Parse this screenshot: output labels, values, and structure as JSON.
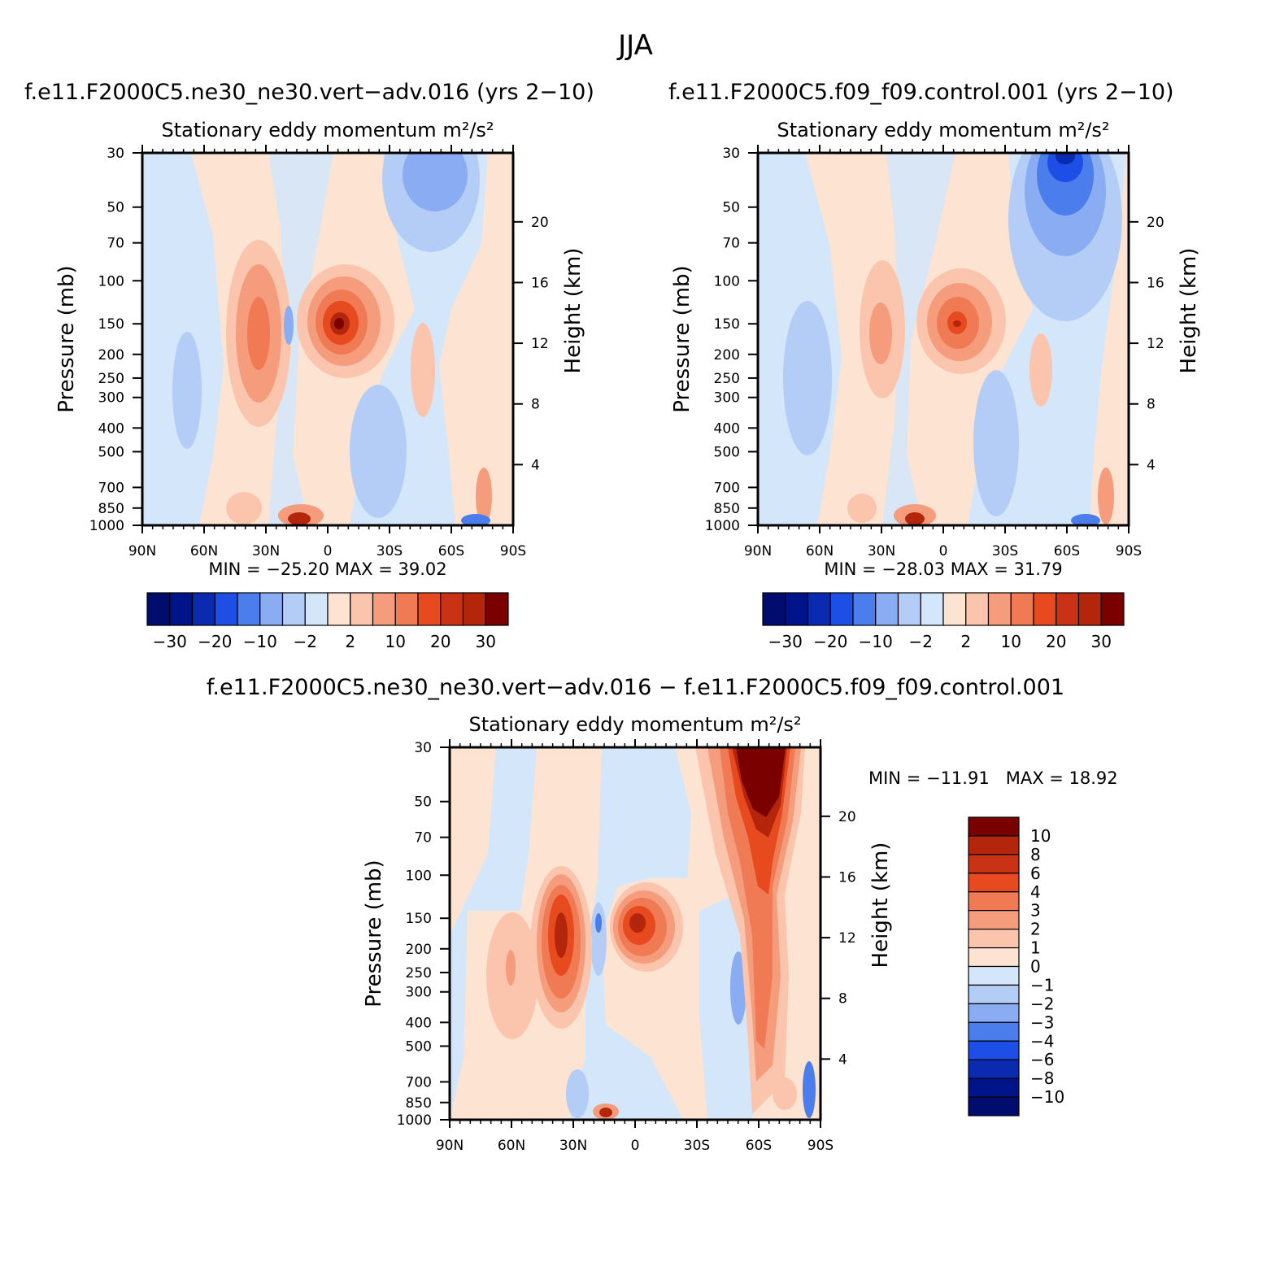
{
  "figure": {
    "title": "JJA"
  },
  "panels": [
    {
      "id": "p1",
      "case_title": "f.e11.F2000C5.ne30_ne30.vert−adv.016 (yrs 2−10)",
      "plot_title": "Stationary eddy momentum",
      "units": "m²/s²",
      "min_text": "MIN = −25.20",
      "max_text": "MAX = 39.02",
      "left_axis": "Pressure (mb)",
      "right_axis": "Height (km)"
    },
    {
      "id": "p2",
      "case_title": "f.e11.F2000C5.f09_f09.control.001 (yrs 2−10)",
      "plot_title": "Stationary eddy momentum",
      "units": "m²/s²",
      "min_text": "MIN = −28.03",
      "max_text": "MAX = 31.79",
      "left_axis": "Pressure (mb)",
      "right_axis": "Height (km)"
    },
    {
      "id": "p3",
      "case_title": "f.e11.F2000C5.ne30_ne30.vert−adv.016 − f.e11.F2000C5.f09_f09.control.001",
      "plot_title": "Stationary eddy momentum",
      "units": "m²/s²",
      "min_text": "MIN = −11.91",
      "max_text": "MAX = 18.92",
      "left_axis": "Pressure (mb)",
      "right_axis": "Height (km)"
    }
  ],
  "chart_data": [
    {
      "type": "heatmap",
      "title": "Stationary eddy momentum (vert-adv.016)",
      "x_ticks": [
        "90N",
        "60N",
        "30N",
        "0",
        "30S",
        "60S",
        "90S"
      ],
      "pressure_ticks": [
        "30",
        "50",
        "70",
        "100",
        "150",
        "200",
        "250",
        "300",
        "400",
        "500",
        "700",
        "850",
        "1000"
      ],
      "height_ticks": [
        "20",
        "16",
        "12",
        "8",
        "4"
      ],
      "min": -25.2,
      "max": 39.02,
      "colorbar_levels": [
        -30,
        -25,
        -20,
        -15,
        -10,
        -5,
        -2,
        0,
        2,
        5,
        10,
        15,
        20,
        25,
        30
      ],
      "colorbar_labels": [
        "−30",
        "−20",
        "−10",
        "−2",
        "2",
        "10",
        "20",
        "30"
      ],
      "features": [
        {
          "lat": -5,
          "p": 150,
          "value": 39.0,
          "note": "equatorial upper-level maximum"
        },
        {
          "lat": 30,
          "p": 170,
          "value": 15.0
        },
        {
          "lat": 65,
          "p": 220,
          "value": -5.0
        },
        {
          "lat": -50,
          "p": 40,
          "value": -10.0
        },
        {
          "lat": -15,
          "p": 400,
          "value": -5.0
        }
      ]
    },
    {
      "type": "heatmap",
      "title": "Stationary eddy momentum (control.001)",
      "x_ticks": [
        "90N",
        "60N",
        "30N",
        "0",
        "30S",
        "60S",
        "90S"
      ],
      "pressure_ticks": [
        "30",
        "50",
        "70",
        "100",
        "150",
        "200",
        "250",
        "300",
        "400",
        "500",
        "700",
        "850",
        "1000"
      ],
      "height_ticks": [
        "20",
        "16",
        "12",
        "8",
        "4"
      ],
      "min": -28.03,
      "max": 31.79,
      "colorbar_levels": [
        -30,
        -25,
        -20,
        -15,
        -10,
        -5,
        -2,
        0,
        2,
        5,
        10,
        15,
        20,
        25,
        30
      ],
      "colorbar_labels": [
        "−30",
        "−20",
        "−10",
        "−2",
        "2",
        "10",
        "20",
        "30"
      ],
      "features": [
        {
          "lat": -5,
          "p": 150,
          "value": 31.8
        },
        {
          "lat": 25,
          "p": 170,
          "value": 10.0
        },
        {
          "lat": 65,
          "p": 250,
          "value": -5.0
        },
        {
          "lat": -60,
          "p": 35,
          "value": -28.0,
          "note": "southern stratospheric minimum"
        },
        {
          "lat": -20,
          "p": 400,
          "value": -5.0
        }
      ]
    },
    {
      "type": "heatmap",
      "title": "Stationary eddy momentum (difference)",
      "x_ticks": [
        "90N",
        "60N",
        "30N",
        "0",
        "30S",
        "60S",
        "90S"
      ],
      "pressure_ticks": [
        "30",
        "50",
        "70",
        "100",
        "150",
        "200",
        "250",
        "300",
        "400",
        "500",
        "700",
        "850",
        "1000"
      ],
      "height_ticks": [
        "20",
        "16",
        "12",
        "8",
        "4"
      ],
      "min": -11.91,
      "max": 18.92,
      "colorbar_levels": [
        -10,
        -8,
        -6,
        -4,
        -3,
        -2,
        -1,
        0,
        1,
        2,
        3,
        4,
        6,
        8,
        10
      ],
      "colorbar_labels": [
        "10",
        "8",
        "6",
        "4",
        "3",
        "2",
        "1",
        "0",
        "−1",
        "−2",
        "−3",
        "−4",
        "−6",
        "−8",
        "−10"
      ],
      "features": [
        {
          "lat": -63,
          "p": 35,
          "value": 18.9,
          "note": "southern high-latitude positive"
        },
        {
          "lat": 35,
          "p": 160,
          "value": 8.0
        },
        {
          "lat": -3,
          "p": 150,
          "value": 8.0
        },
        {
          "lat": 18,
          "p": 150,
          "value": -2.0
        },
        {
          "lat": -50,
          "p": 300,
          "value": -2.0
        }
      ]
    }
  ]
}
